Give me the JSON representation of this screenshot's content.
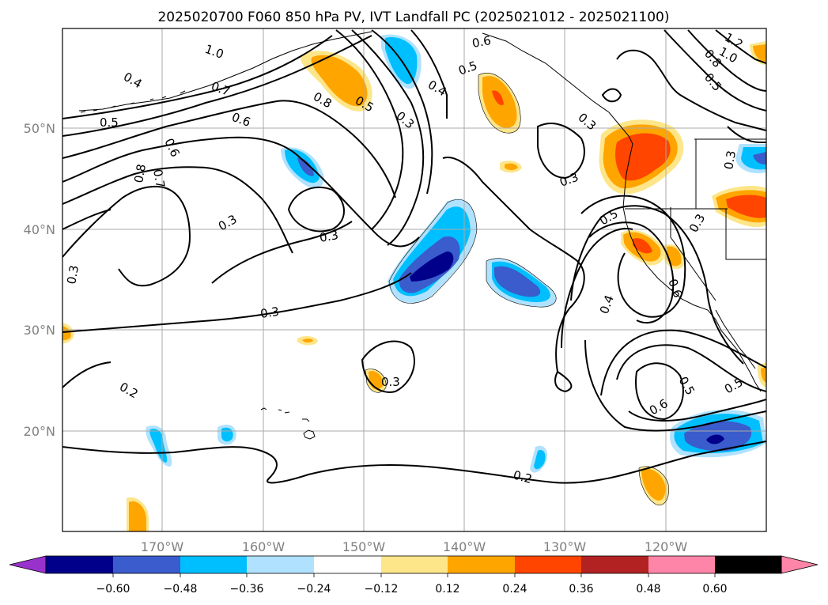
{
  "figure": {
    "title": "2025020700 F060 850 hPa PV, IVT Landfall PC (2025021012 - 2025021100)"
  },
  "map": {
    "lat_labels": [
      "50°N",
      "40°N",
      "30°N",
      "20°N"
    ],
    "lon_labels": [
      "170°W",
      "160°W",
      "150°W",
      "140°W",
      "130°W",
      "120°W"
    ],
    "grid": true
  },
  "contour_labels": [
    "1.0",
    "0.4",
    "0.5",
    "0.7",
    "0.6",
    "0.6",
    "0.8",
    "0.7",
    "0.8",
    "0.5",
    "0.3",
    "0.4",
    "0.5",
    "0.6",
    "0.3",
    "0.3",
    "0.3",
    "0.3",
    "0.3",
    "0.2",
    "0.3",
    "0.2",
    "0.4",
    "0.3",
    "0.5",
    "0.3",
    "0.6",
    "0.5",
    "0.6",
    "0.5",
    "1.2",
    "1.0",
    "0.8",
    "0.5",
    "0.3"
  ],
  "colorbar": {
    "ticks": [
      "−0.60",
      "−0.48",
      "−0.36",
      "−0.24",
      "−0.12",
      "0.12",
      "0.24",
      "0.36",
      "0.48",
      "0.60"
    ],
    "colors": [
      "#9932cc",
      "#00008b",
      "#3a5ccc",
      "#00bfff",
      "#b0e2ff",
      "#ffffff",
      "#fde68a",
      "#ffa500",
      "#ff4500",
      "#b22222",
      "#ff85a8"
    ]
  }
}
